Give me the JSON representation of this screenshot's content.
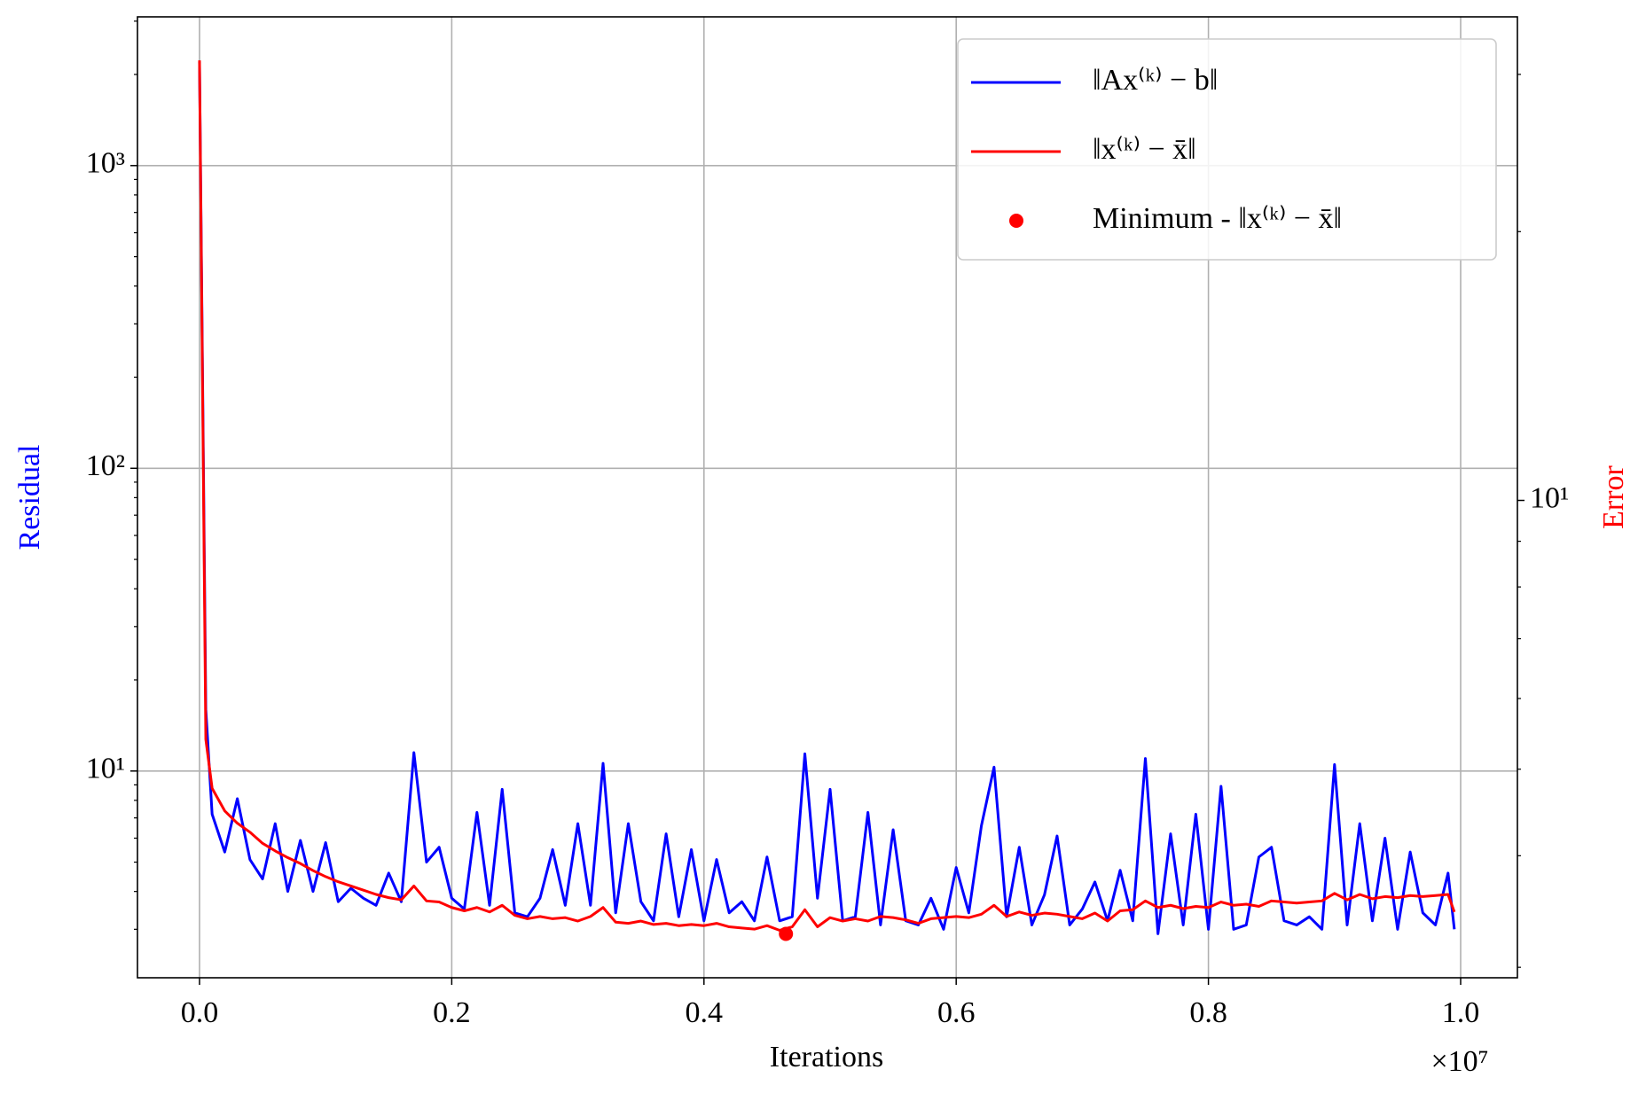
{
  "chart_data": {
    "type": "line",
    "xlabel": "Iterations",
    "ylabel": "Residual",
    "y2label": "Error",
    "x_offset_label": "×10⁷",
    "xlim": [
      -492000,
      10450000
    ],
    "xticks": [
      {
        "value": 0,
        "label": "0.0"
      },
      {
        "value": 2000000,
        "label": "0.2"
      },
      {
        "value": 4000000,
        "label": "0.4"
      },
      {
        "value": 6000000,
        "label": "0.6"
      },
      {
        "value": 8000000,
        "label": "0.8"
      },
      {
        "value": 10000000,
        "label": "1.0"
      }
    ],
    "ylim": [
      2.075,
      3100
    ],
    "log_y": true,
    "yticks": [
      {
        "value": 10,
        "label": "10¹"
      },
      {
        "value": 100,
        "label": "10²"
      },
      {
        "value": 1000,
        "label": "10³"
      }
    ],
    "y2lim": [
      2.92,
      34.8
    ],
    "log_y2": true,
    "y2ticks": [
      {
        "value": 10,
        "label": "10¹"
      }
    ],
    "grid": true,
    "legend": "upper right",
    "series": [
      {
        "name": "‖Ax⁽ᵏ⁾ − b‖",
        "color": "#0000ff",
        "style": "line",
        "axis": "y",
        "x": [
          0,
          50000,
          100000,
          200000,
          300000,
          400000,
          500000,
          600000,
          700000,
          800000,
          900000,
          1000000,
          1100000,
          1200000,
          1300000,
          1400000,
          1500000,
          1600000,
          1700000,
          1800000,
          1900000,
          2000000,
          2100000,
          2200000,
          2300000,
          2400000,
          2500000,
          2600000,
          2700000,
          2800000,
          2900000,
          3000000,
          3100000,
          3200000,
          3300000,
          3400000,
          3500000,
          3600000,
          3700000,
          3800000,
          3900000,
          4000000,
          4100000,
          4200000,
          4300000,
          4400000,
          4500000,
          4600000,
          4700000,
          4800000,
          4900000,
          5000000,
          5100000,
          5200000,
          5300000,
          5400000,
          5500000,
          5600000,
          5700000,
          5800000,
          5900000,
          6000000,
          6100000,
          6200000,
          6300000,
          6400000,
          6500000,
          6600000,
          6700000,
          6800000,
          6900000,
          7000000,
          7100000,
          7200000,
          7300000,
          7400000,
          7500000,
          7600000,
          7700000,
          7800000,
          7900000,
          8000000,
          8100000,
          8200000,
          8300000,
          8400000,
          8500000,
          8600000,
          8700000,
          8800000,
          8900000,
          9000000,
          9100000,
          9200000,
          9300000,
          9400000,
          9500000,
          9600000,
          9700000,
          9800000,
          9900000,
          9950000
        ],
        "values": [
          2200,
          16,
          7.2,
          5.4,
          8.1,
          5.1,
          4.4,
          6.7,
          4.0,
          5.9,
          4.0,
          5.8,
          3.7,
          4.1,
          3.8,
          3.6,
          4.6,
          3.7,
          11.5,
          5.0,
          5.6,
          3.8,
          3.5,
          7.3,
          3.6,
          8.7,
          3.4,
          3.3,
          3.8,
          5.5,
          3.6,
          6.7,
          3.6,
          10.6,
          3.4,
          6.7,
          3.7,
          3.2,
          6.2,
          3.3,
          5.5,
          3.2,
          5.1,
          3.4,
          3.7,
          3.2,
          5.2,
          3.2,
          3.3,
          11.4,
          3.8,
          8.7,
          3.2,
          3.3,
          7.3,
          3.1,
          6.4,
          3.2,
          3.1,
          3.8,
          3.0,
          4.8,
          3.4,
          6.6,
          10.3,
          3.3,
          5.6,
          3.1,
          3.9,
          6.1,
          3.1,
          3.5,
          4.3,
          3.2,
          4.7,
          3.2,
          11.0,
          2.9,
          6.2,
          3.1,
          7.2,
          3.0,
          8.9,
          3.0,
          3.1,
          5.2,
          5.6,
          3.2,
          3.1,
          3.3,
          3.0,
          10.5,
          3.1,
          6.7,
          3.2,
          6.0,
          3.0,
          5.4,
          3.4,
          3.1,
          4.6,
          3.0
        ]
      },
      {
        "name": "‖x⁽ᵏ⁾ − x̄‖",
        "color": "#ff0000",
        "style": "line",
        "axis": "y2",
        "x": [
          0,
          50000,
          100000,
          200000,
          300000,
          400000,
          500000,
          600000,
          700000,
          800000,
          900000,
          1000000,
          1100000,
          1200000,
          1300000,
          1400000,
          1500000,
          1600000,
          1700000,
          1800000,
          1900000,
          2000000,
          2100000,
          2200000,
          2300000,
          2400000,
          2500000,
          2600000,
          2700000,
          2800000,
          2900000,
          3000000,
          3100000,
          3200000,
          3300000,
          3400000,
          3500000,
          3600000,
          3700000,
          3800000,
          3900000,
          4000000,
          4100000,
          4200000,
          4300000,
          4400000,
          4500000,
          4600000,
          4700000,
          4800000,
          4900000,
          5000000,
          5100000,
          5200000,
          5300000,
          5400000,
          5500000,
          5600000,
          5700000,
          5800000,
          5900000,
          6000000,
          6100000,
          6200000,
          6300000,
          6400000,
          6500000,
          6600000,
          6700000,
          6800000,
          6900000,
          7000000,
          7100000,
          7200000,
          7300000,
          7400000,
          7500000,
          7600000,
          7700000,
          7800000,
          7900000,
          8000000,
          8100000,
          8200000,
          8300000,
          8400000,
          8500000,
          8600000,
          8700000,
          8800000,
          8900000,
          9000000,
          9100000,
          9200000,
          9300000,
          9400000,
          9500000,
          9600000,
          9700000,
          9800000,
          9900000,
          9950000
        ],
        "values": [
          31.1,
          5.4,
          4.76,
          4.49,
          4.35,
          4.25,
          4.13,
          4.05,
          3.98,
          3.92,
          3.85,
          3.79,
          3.74,
          3.7,
          3.66,
          3.62,
          3.59,
          3.57,
          3.7,
          3.56,
          3.55,
          3.5,
          3.47,
          3.5,
          3.46,
          3.52,
          3.43,
          3.4,
          3.42,
          3.4,
          3.41,
          3.38,
          3.42,
          3.5,
          3.37,
          3.36,
          3.38,
          3.35,
          3.36,
          3.34,
          3.35,
          3.34,
          3.36,
          3.33,
          3.32,
          3.31,
          3.34,
          3.3,
          3.33,
          3.48,
          3.33,
          3.41,
          3.38,
          3.4,
          3.38,
          3.42,
          3.41,
          3.39,
          3.36,
          3.4,
          3.41,
          3.42,
          3.41,
          3.44,
          3.52,
          3.42,
          3.46,
          3.43,
          3.45,
          3.44,
          3.42,
          3.4,
          3.45,
          3.38,
          3.47,
          3.48,
          3.56,
          3.5,
          3.52,
          3.49,
          3.51,
          3.5,
          3.55,
          3.52,
          3.53,
          3.51,
          3.56,
          3.55,
          3.54,
          3.55,
          3.56,
          3.63,
          3.57,
          3.62,
          3.58,
          3.6,
          3.59,
          3.61,
          3.6,
          3.61,
          3.62,
          3.46
        ]
      },
      {
        "name": "Minimum - ‖x⁽ᵏ⁾ − x̄‖",
        "color": "#ff0000",
        "style": "marker",
        "axis": "y2",
        "x": [
          4650000
        ],
        "values": [
          3.27
        ]
      }
    ]
  }
}
